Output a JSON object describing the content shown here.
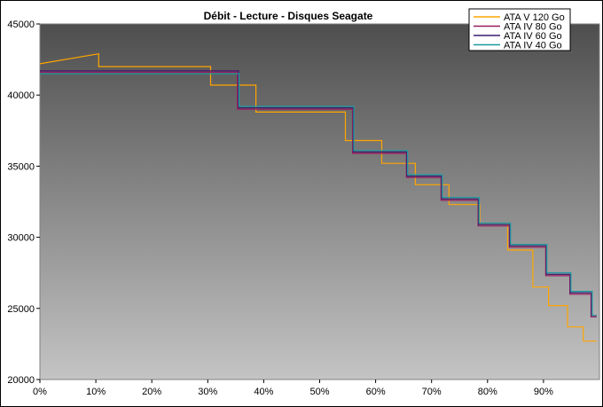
{
  "chart_data": {
    "type": "line",
    "title": "Débit - Lecture - Disques Seagate",
    "xlabel": "",
    "ylabel": "",
    "xlim": [
      0,
      100
    ],
    "ylim": [
      20000,
      45000
    ],
    "x_ticks": [
      "0%",
      "10%",
      "20%",
      "30%",
      "40%",
      "50%",
      "60%",
      "70%",
      "80%",
      "90%"
    ],
    "y_ticks": [
      "20000",
      "25000",
      "30000",
      "35000",
      "40000",
      "45000"
    ],
    "grid": false,
    "legend_position": "top-right",
    "series": [
      {
        "name": "ATA V 120 Go",
        "color": "#ffa500",
        "points": [
          [
            0,
            42200
          ],
          [
            10.5,
            42900
          ],
          [
            10.5,
            42000
          ],
          [
            30.5,
            42000
          ],
          [
            30.5,
            40700
          ],
          [
            38.6,
            40700
          ],
          [
            38.6,
            38800
          ],
          [
            54.6,
            38800
          ],
          [
            54.6,
            36800
          ],
          [
            61.1,
            36800
          ],
          [
            61.1,
            35200
          ],
          [
            67.1,
            35200
          ],
          [
            67.1,
            33700
          ],
          [
            73.1,
            33700
          ],
          [
            73.1,
            32300
          ],
          [
            78.6,
            32300
          ],
          [
            78.6,
            31000
          ],
          [
            83.6,
            31000
          ],
          [
            83.6,
            29100
          ],
          [
            88.1,
            29100
          ],
          [
            88.1,
            26500
          ],
          [
            90.9,
            26500
          ],
          [
            90.9,
            25200
          ],
          [
            94.3,
            25200
          ],
          [
            94.3,
            23700
          ],
          [
            97.1,
            23700
          ],
          [
            97.1,
            22700
          ],
          [
            99.5,
            22700
          ]
        ]
      },
      {
        "name": "ATA IV 80 Go",
        "color": "#9b1a5a",
        "points": [
          [
            0,
            41600
          ],
          [
            35.3,
            41600
          ],
          [
            35.3,
            39000
          ],
          [
            55.9,
            39000
          ],
          [
            55.9,
            35900
          ],
          [
            65.5,
            35900
          ],
          [
            65.5,
            34200
          ],
          [
            71.7,
            34200
          ],
          [
            71.7,
            32600
          ],
          [
            78.3,
            32600
          ],
          [
            78.3,
            30800
          ],
          [
            83.9,
            30800
          ],
          [
            83.9,
            29300
          ],
          [
            90.4,
            29300
          ],
          [
            90.4,
            27300
          ],
          [
            94.7,
            27300
          ],
          [
            94.7,
            26000
          ],
          [
            98.5,
            26000
          ],
          [
            98.5,
            24400
          ],
          [
            99.5,
            24400
          ]
        ]
      },
      {
        "name": "ATA IV 60 Go",
        "color": "#3c1a6e",
        "points": [
          [
            0,
            41700
          ],
          [
            35.5,
            41700
          ],
          [
            35.5,
            39100
          ],
          [
            56.0,
            39100
          ],
          [
            56.0,
            36000
          ],
          [
            65.6,
            36000
          ],
          [
            65.6,
            34300
          ],
          [
            71.8,
            34300
          ],
          [
            71.8,
            32700
          ],
          [
            78.4,
            32700
          ],
          [
            78.4,
            30900
          ],
          [
            84.0,
            30900
          ],
          [
            84.0,
            29400
          ],
          [
            90.5,
            29400
          ],
          [
            90.5,
            27400
          ],
          [
            94.8,
            27400
          ],
          [
            94.8,
            26100
          ],
          [
            98.6,
            26100
          ],
          [
            98.6,
            24500
          ],
          [
            99.5,
            24500
          ]
        ]
      },
      {
        "name": "ATA IV 40 Go",
        "color": "#1a9aa0",
        "points": [
          [
            0,
            41500
          ],
          [
            35.6,
            41500
          ],
          [
            35.6,
            39200
          ],
          [
            56.1,
            39200
          ],
          [
            56.1,
            36100
          ],
          [
            65.7,
            36100
          ],
          [
            65.7,
            34400
          ],
          [
            71.9,
            34400
          ],
          [
            71.9,
            32800
          ],
          [
            78.5,
            32800
          ],
          [
            78.5,
            31000
          ],
          [
            84.1,
            31000
          ],
          [
            84.1,
            29500
          ],
          [
            90.6,
            29500
          ],
          [
            90.6,
            27500
          ],
          [
            94.9,
            27500
          ],
          [
            94.9,
            26200
          ],
          [
            98.7,
            26200
          ],
          [
            98.7,
            24500
          ],
          [
            99.5,
            24500
          ]
        ]
      }
    ]
  }
}
